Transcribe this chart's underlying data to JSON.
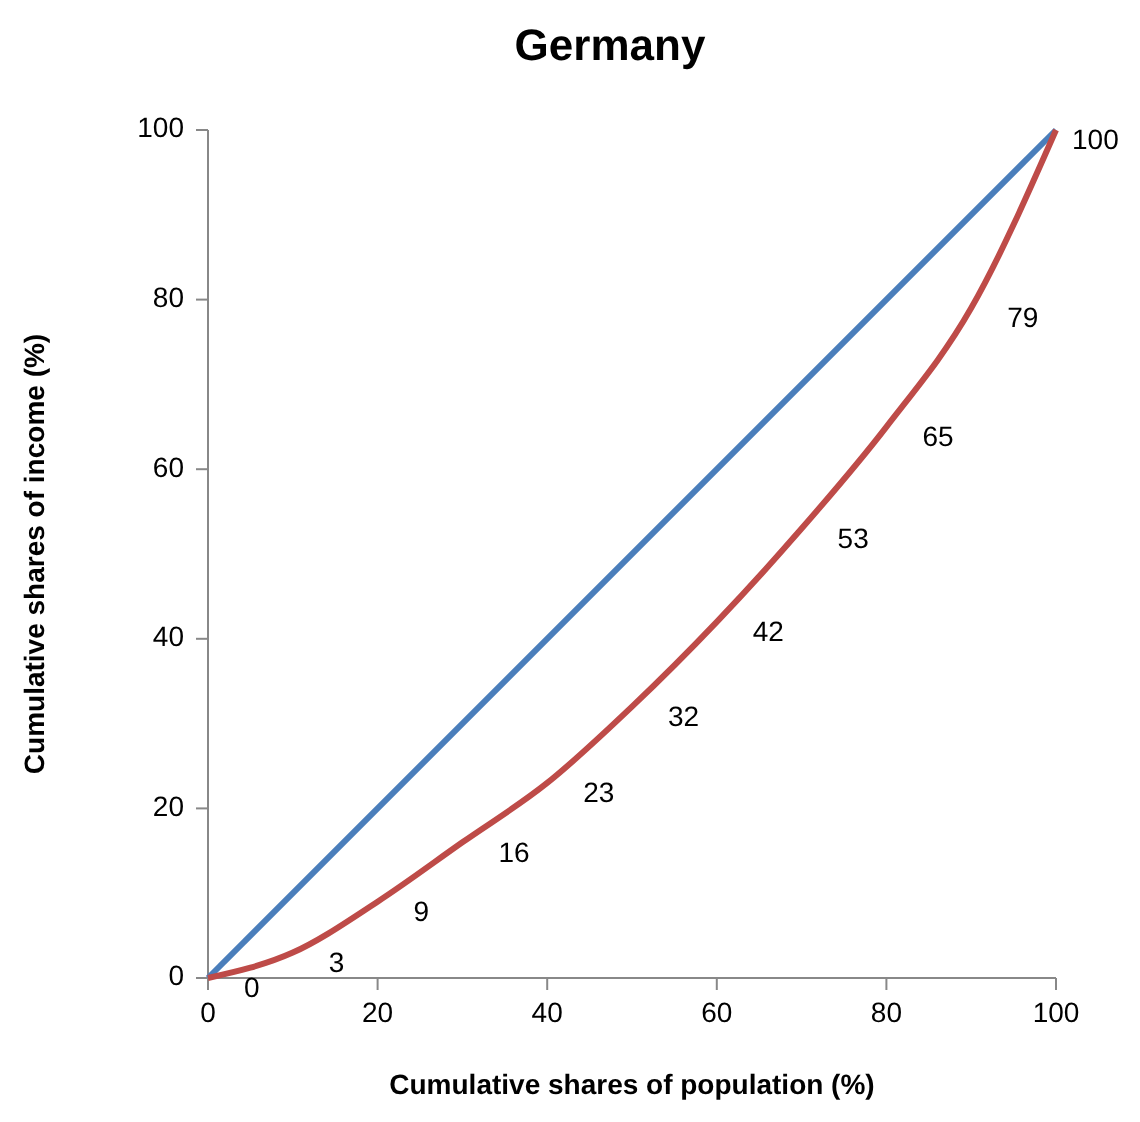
{
  "chart_data": {
    "type": "line",
    "title": "Germany",
    "xlabel": "Cumulative shares of population (%)",
    "ylabel": "Cumulative shares of income (%)",
    "x": [
      0,
      10,
      20,
      30,
      40,
      50,
      60,
      70,
      80,
      90,
      100
    ],
    "series": [
      {
        "color": "#4a7ebb",
        "x": [
          0,
          100
        ],
        "values": [
          0,
          100
        ]
      },
      {
        "color": "#be4b48",
        "values": [
          0,
          3,
          9,
          16,
          23,
          32,
          42,
          53,
          65,
          79,
          100
        ],
        "value_labels": [
          "0",
          "3",
          "9",
          "16",
          "23",
          "32",
          "42",
          "53",
          "65",
          "79",
          "100"
        ]
      }
    ],
    "xlim": [
      0,
      100
    ],
    "xticks": [
      0,
      20,
      40,
      60,
      80,
      100
    ],
    "ylim": [
      0,
      100
    ],
    "yticks": [
      0,
      20,
      40,
      60,
      80,
      100
    ],
    "grid": false,
    "marker": "none",
    "line_style": "solid"
  }
}
